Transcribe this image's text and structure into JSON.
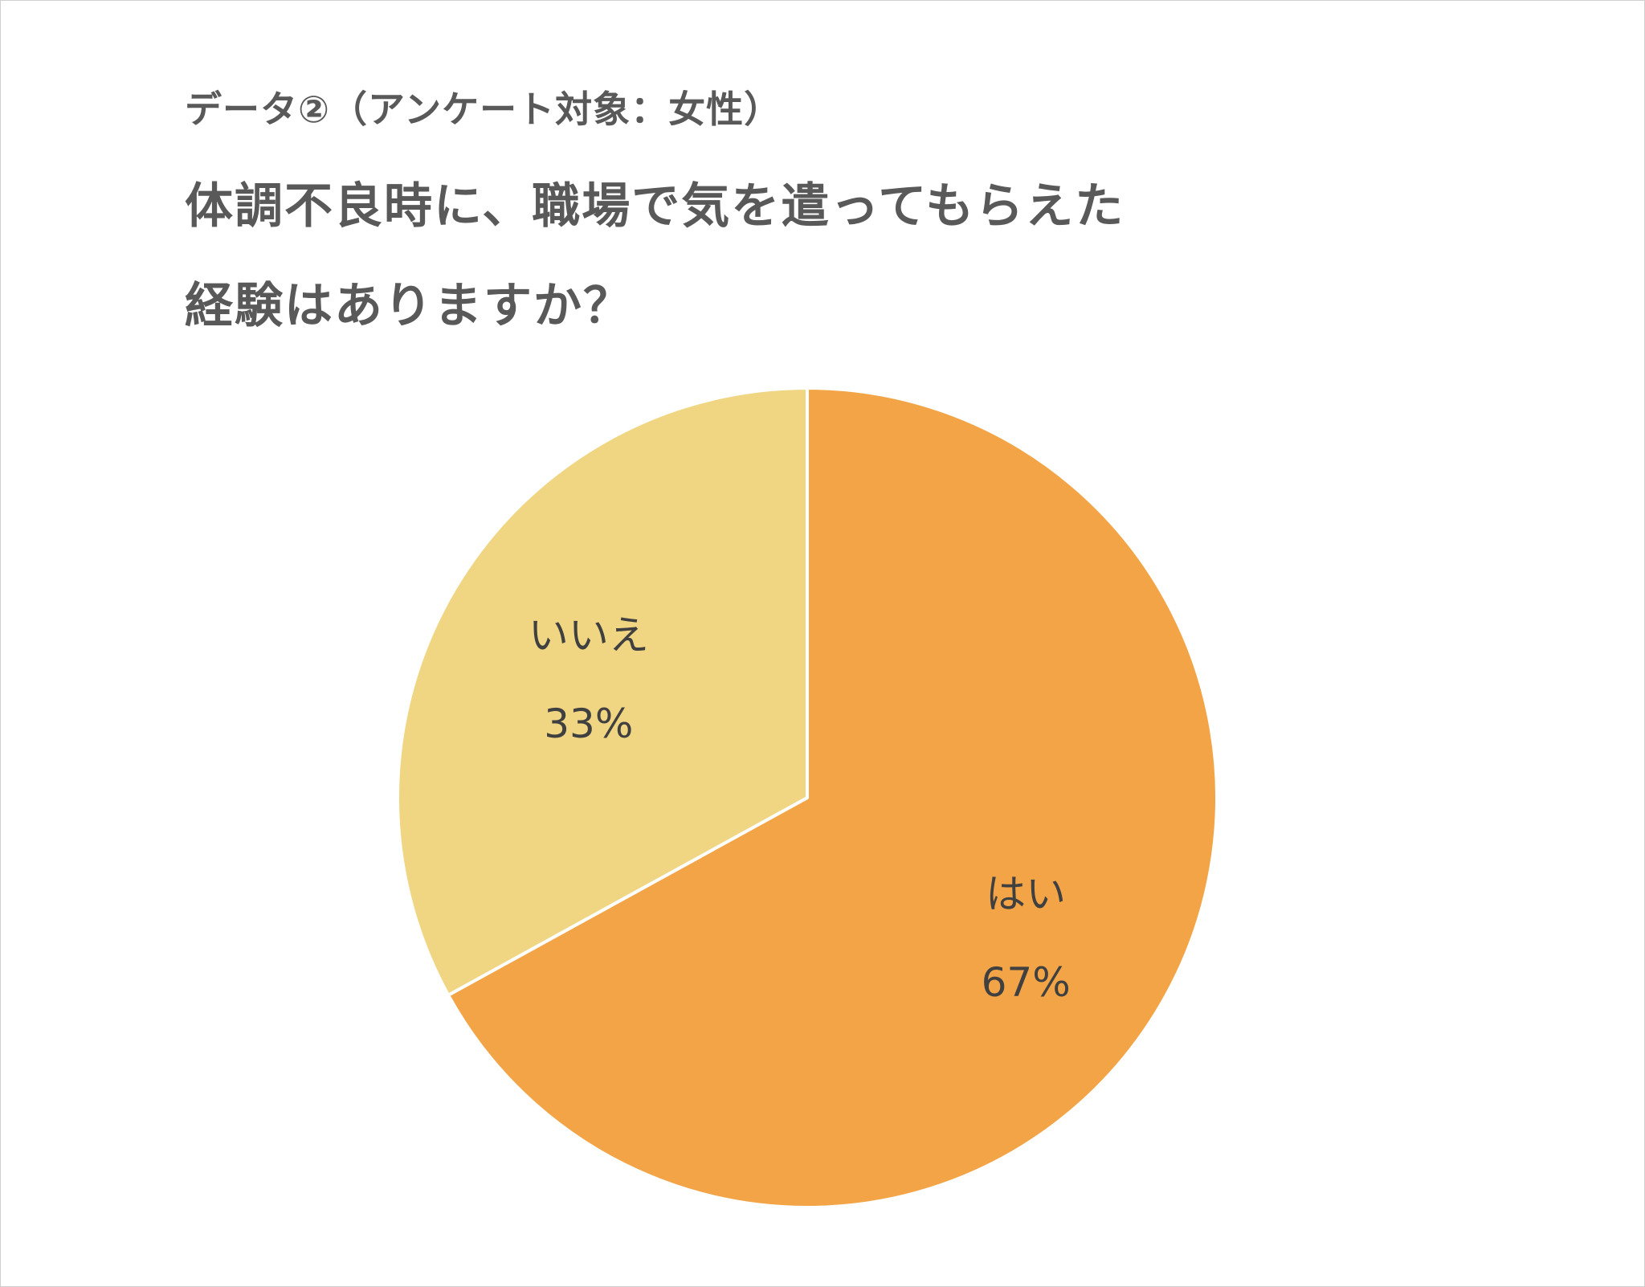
{
  "header": {
    "subtitle": "データ②（アンケート対象：女性）",
    "title_line1": "体調不良時に、職場で気を遣ってもらえた",
    "title_line2": "経験はありますか？"
  },
  "chart_data": {
    "type": "pie",
    "title": "体調不良時に、職場で気を遣ってもらえた経験はありますか？",
    "subtitle": "データ②（アンケート対象：女性）",
    "start_angle_deg": 0,
    "direction": "clockwise",
    "slices": [
      {
        "label": "はい",
        "value": 67,
        "value_label": "67%",
        "color": "#F2A446"
      },
      {
        "label": "いいえ",
        "value": 33,
        "value_label": "33%",
        "color": "#F0D682"
      }
    ],
    "separator_color": "#ffffff"
  }
}
